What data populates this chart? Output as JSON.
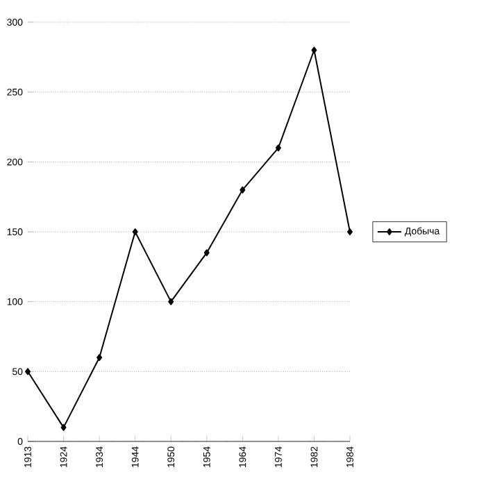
{
  "chart_data": {
    "type": "line",
    "categories": [
      "1913",
      "1924",
      "1934",
      "1944",
      "1950",
      "1954",
      "1964",
      "1974",
      "1982",
      "1984"
    ],
    "series": [
      {
        "name": "Добыча",
        "color": "#000000",
        "values": [
          50,
          10,
          60,
          150,
          100,
          135,
          180,
          210,
          280,
          150
        ]
      }
    ],
    "ylim": [
      0,
      300
    ],
    "yticks": [
      0,
      50,
      100,
      150,
      200,
      250,
      300
    ],
    "grid": "y",
    "legend": "right",
    "marker": "diamond",
    "line_style": "solid"
  }
}
